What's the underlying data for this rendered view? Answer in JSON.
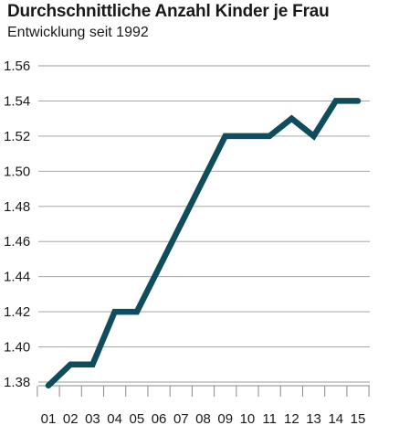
{
  "chart_data": {
    "type": "line",
    "title": "Durchschnittliche Anzahl Kinder je Frau",
    "subtitle": "Entwicklung seit 1992",
    "xlabel": "",
    "ylabel": "",
    "categories": [
      "01",
      "02",
      "03",
      "04",
      "05",
      "06",
      "07",
      "08",
      "09",
      "10",
      "11",
      "12",
      "13",
      "14",
      "15"
    ],
    "values": [
      1.378,
      1.39,
      1.39,
      1.42,
      1.42,
      1.445,
      1.47,
      1.495,
      1.52,
      1.52,
      1.52,
      1.53,
      1.52,
      1.54,
      1.54
    ],
    "y_ticks": [
      "1.38",
      "1.40",
      "1.42",
      "1.44",
      "1.46",
      "1.48",
      "1.50",
      "1.52",
      "1.54",
      "1.56"
    ],
    "ylim": [
      1.38,
      1.56
    ],
    "grid": true,
    "legend": "none",
    "colors": {
      "line": "#0f4c5c",
      "grid": "#9a9a9a",
      "axis": "#8a8a8a"
    }
  }
}
